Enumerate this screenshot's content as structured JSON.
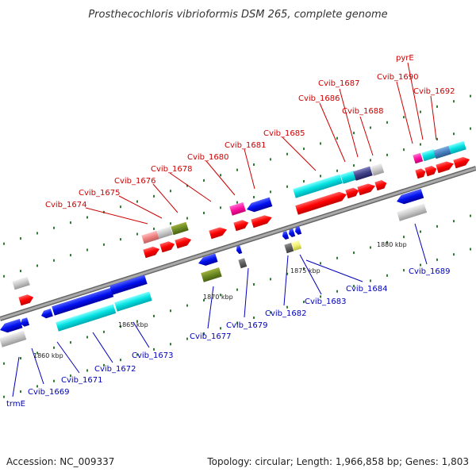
{
  "title": "Prosthecochloris vibrioformis DSM 265, complete genome",
  "footer": {
    "accession": "Accession: NC_009337",
    "topology": "Topology: circular; Length: 1,966,858 bp; Genes: 1,803"
  },
  "colors": {
    "plus_label": "#cc0000",
    "minus_label": "#0000bb",
    "backbone": "#999999",
    "tick": "#2e7d32"
  },
  "scale_marks": [
    "1860 kbp",
    "1865 kbp",
    "1870 kbp",
    "1875 kbp",
    "1880 kbp"
  ],
  "genes": [
    {
      "name": "trmE",
      "strand": "minus"
    },
    {
      "name": "Cvib_1669",
      "strand": "minus"
    },
    {
      "name": "Cvib_1671",
      "strand": "minus"
    },
    {
      "name": "Cvib_1672",
      "strand": "minus"
    },
    {
      "name": "Cvib_1673",
      "strand": "minus"
    },
    {
      "name": "Cvib_1674",
      "strand": "plus"
    },
    {
      "name": "Cvib_1675",
      "strand": "plus"
    },
    {
      "name": "Cvib_1676",
      "strand": "plus"
    },
    {
      "name": "Cvib_1677",
      "strand": "minus"
    },
    {
      "name": "Cvib_1678",
      "strand": "plus"
    },
    {
      "name": "Cvib_1679",
      "strand": "minus"
    },
    {
      "name": "Cvib_1680",
      "strand": "plus"
    },
    {
      "name": "Cvib_1681",
      "strand": "plus"
    },
    {
      "name": "Cvib_1682",
      "strand": "minus"
    },
    {
      "name": "Cvib_1683",
      "strand": "minus"
    },
    {
      "name": "Cvib_1684",
      "strand": "minus"
    },
    {
      "name": "Cvib_1685",
      "strand": "plus"
    },
    {
      "name": "Cvib_1686",
      "strand": "plus"
    },
    {
      "name": "Cvib_1687",
      "strand": "plus"
    },
    {
      "name": "Cvib_1688",
      "strand": "plus"
    },
    {
      "name": "Cvib_1689",
      "strand": "minus"
    },
    {
      "name": "pyrE",
      "strand": "plus"
    },
    {
      "name": "Cvib_1690",
      "strand": "plus"
    },
    {
      "name": "Cvib_1692",
      "strand": "plus"
    }
  ]
}
